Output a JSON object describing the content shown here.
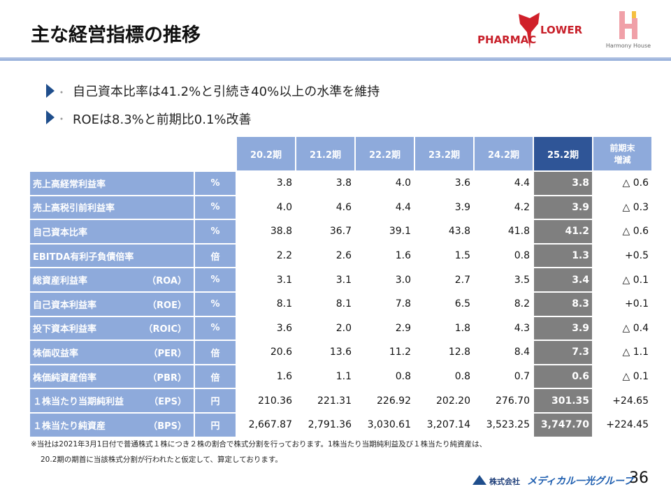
{
  "header": {
    "title": "主な経営指標の推移",
    "logo_left_a": "PHARMAC",
    "logo_left_b": "LOWER",
    "logo_right": "Harmony House"
  },
  "bullets": [
    "自己資本比率は41.2%と引続き40%以上の水準を維持",
    "ROEは8.3%と前期比0.1%改善"
  ],
  "table": {
    "columns": [
      "20.2期",
      "21.2期",
      "22.2期",
      "23.2期",
      "24.2期",
      "25.2期"
    ],
    "change_header": [
      "前期末",
      "増減"
    ],
    "rows": [
      {
        "label": "売上高経常利益率",
        "unit": "%",
        "values": [
          "3.8",
          "3.8",
          "4.0",
          "3.6",
          "4.4",
          "3.8"
        ],
        "change": "△ 0.6"
      },
      {
        "label": "売上高税引前利益率",
        "unit": "%",
        "values": [
          "4.0",
          "4.6",
          "4.4",
          "3.9",
          "4.2",
          "3.9"
        ],
        "change": "△ 0.3"
      },
      {
        "label": "自己資本比率",
        "unit": "%",
        "values": [
          "38.8",
          "36.7",
          "39.1",
          "43.8",
          "41.8",
          "41.2"
        ],
        "change": "△ 0.6"
      },
      {
        "label": "EBITDA有利子負債倍率",
        "unit": "倍",
        "values": [
          "2.2",
          "2.6",
          "1.6",
          "1.5",
          "0.8",
          "1.3"
        ],
        "change": "+0.5"
      },
      {
        "label": "総資産利益率",
        "abbr": "（ROA）",
        "unit": "%",
        "values": [
          "3.1",
          "3.1",
          "3.0",
          "2.7",
          "3.5",
          "3.4"
        ],
        "change": "△ 0.1"
      },
      {
        "label": "自己資本利益率",
        "abbr": "（ROE）",
        "unit": "%",
        "values": [
          "8.1",
          "8.1",
          "7.8",
          "6.5",
          "8.2",
          "8.3"
        ],
        "change": "+0.1"
      },
      {
        "label": "投下資本利益率",
        "abbr": "（ROIC）",
        "unit": "%",
        "values": [
          "3.6",
          "2.0",
          "2.9",
          "1.8",
          "4.3",
          "3.9"
        ],
        "change": "△ 0.4"
      },
      {
        "label": "株価収益率",
        "abbr": "（PER）",
        "unit": "倍",
        "values": [
          "20.6",
          "13.6",
          "11.2",
          "12.8",
          "8.4",
          "7.3"
        ],
        "change": "△ 1.1"
      },
      {
        "label": "株価純資産倍率",
        "abbr": "（PBR）",
        "unit": "倍",
        "values": [
          "1.6",
          "1.1",
          "0.8",
          "0.8",
          "0.7",
          "0.6"
        ],
        "change": "△ 0.1"
      },
      {
        "label": "１株当たり当期純利益",
        "abbr": "（EPS）",
        "unit": "円",
        "values": [
          "210.36",
          "221.31",
          "226.92",
          "202.20",
          "276.70",
          "301.35"
        ],
        "change": "+24.65"
      },
      {
        "label": "１株当たり純資産",
        "abbr": "（BPS）",
        "unit": "円",
        "values": [
          "2,667.87",
          "2,791.36",
          "3,030.61",
          "3,207.14",
          "3,523.25",
          "3,747.70"
        ],
        "change": "+224.45"
      }
    ]
  },
  "footnote": [
    "※当社は2021年3月1日付で普通株式１株につき２株の割合で株式分割を行っております。1株当たり当期純利益及び１株当たり純資産は、",
    "20.2期の期首に当該株式分割が行われたと仮定して、算定しております。"
  ],
  "footer": {
    "company_prefix": "株式会社",
    "company": "メディカル一光グループ",
    "page": "36"
  }
}
